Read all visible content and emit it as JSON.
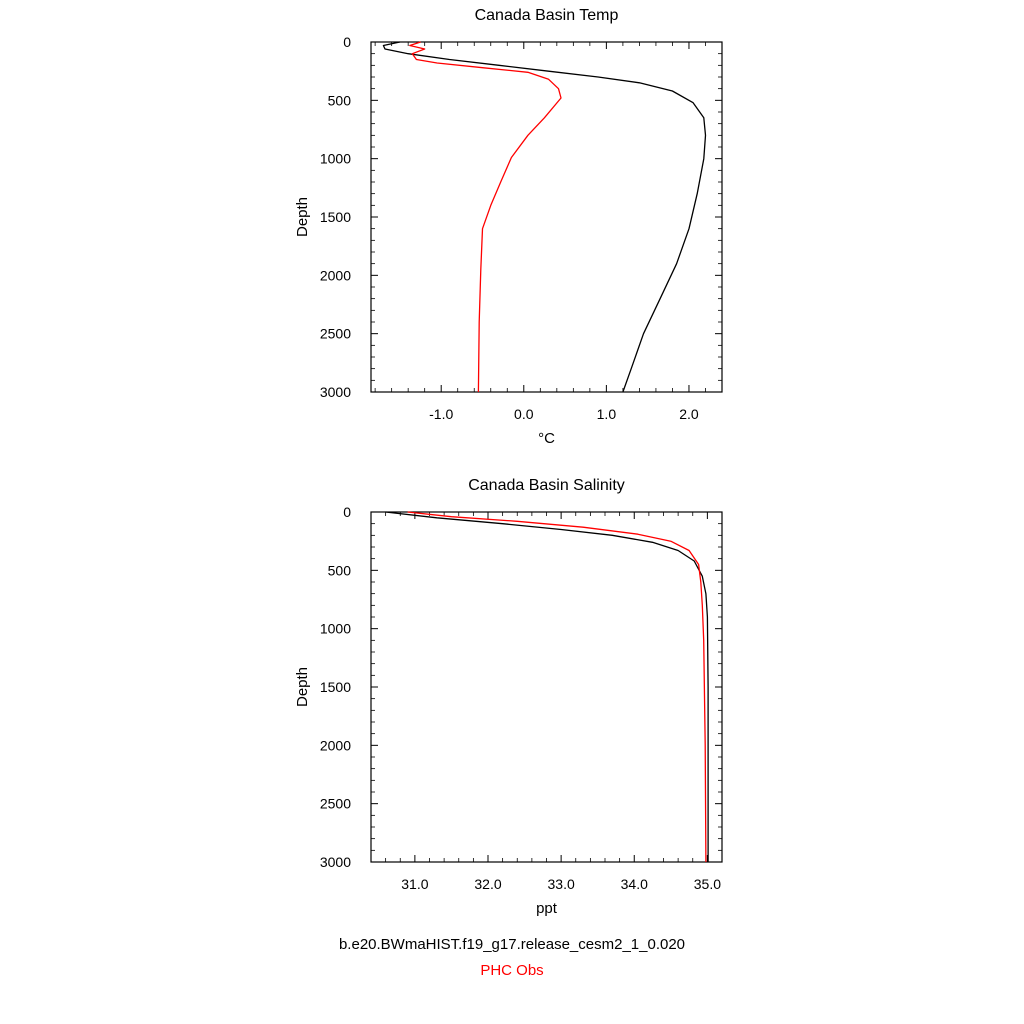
{
  "chart_data": [
    {
      "type": "line",
      "title": "Canada Basin Temp",
      "xlabel": "°C",
      "ylabel": "Depth",
      "xlim": [
        -1.85,
        2.4
      ],
      "ylim": [
        3000,
        0
      ],
      "y_inverted": true,
      "xticks": [
        -1.0,
        0.0,
        1.0,
        2.0
      ],
      "xtick_labels": [
        "-1.0",
        "0.0",
        "1.0",
        "2.0"
      ],
      "yticks": [
        0,
        500,
        1000,
        1500,
        2000,
        2500,
        3000
      ],
      "ytick_labels": [
        "0",
        "500",
        "1000",
        "1500",
        "2000",
        "2500",
        "3000"
      ],
      "grid": false,
      "series": [
        {
          "name": "b.e20.BWmaHIST.f19_g17.release_cesm2_1_0.020",
          "color": "#000000",
          "x": [
            -1.5,
            -1.7,
            -1.68,
            -1.4,
            -0.9,
            -0.3,
            0.3,
            0.9,
            1.4,
            1.8,
            2.05,
            2.18,
            2.2,
            2.18,
            2.1,
            2.0,
            1.85,
            1.65,
            1.45,
            1.3,
            1.2
          ],
          "y": [
            0,
            30,
            60,
            100,
            150,
            200,
            250,
            300,
            350,
            420,
            520,
            650,
            800,
            1000,
            1300,
            1600,
            1900,
            2200,
            2500,
            2800,
            3000
          ]
        },
        {
          "name": "PHC Obs",
          "color": "#ff0000",
          "x": [
            -1.25,
            -1.38,
            -1.2,
            -1.35,
            -1.3,
            -1.05,
            -0.5,
            0.05,
            0.3,
            0.42,
            0.45,
            0.25,
            0.05,
            -0.15,
            -0.28,
            -0.4,
            -0.5,
            -0.52,
            -0.54,
            -0.55
          ],
          "y": [
            0,
            30,
            60,
            100,
            150,
            180,
            220,
            260,
            320,
            400,
            480,
            650,
            800,
            990,
            1200,
            1400,
            1600,
            1950,
            2400,
            3000
          ]
        }
      ]
    },
    {
      "type": "line",
      "title": "Canada Basin Salinity",
      "xlabel": "ppt",
      "ylabel": "Depth",
      "xlim": [
        30.4,
        35.2
      ],
      "ylim": [
        3000,
        0
      ],
      "y_inverted": true,
      "xticks": [
        31.0,
        32.0,
        33.0,
        34.0,
        35.0
      ],
      "xtick_labels": [
        "31.0",
        "32.0",
        "33.0",
        "34.0",
        "35.0"
      ],
      "yticks": [
        0,
        500,
        1000,
        1500,
        2000,
        2500,
        3000
      ],
      "ytick_labels": [
        "0",
        "500",
        "1000",
        "1500",
        "2000",
        "2500",
        "3000"
      ],
      "grid": false,
      "series": [
        {
          "name": "b.e20.BWmaHIST.f19_g17.release_cesm2_1_0.020",
          "color": "#000000",
          "x": [
            30.6,
            31.3,
            32.2,
            33.0,
            33.7,
            34.25,
            34.6,
            34.82,
            34.93,
            34.98,
            35.0,
            35.01,
            35.01
          ],
          "y": [
            0,
            50,
            100,
            150,
            200,
            260,
            330,
            420,
            550,
            700,
            900,
            1500,
            3000
          ]
        },
        {
          "name": "PHC Obs",
          "color": "#ff0000",
          "x": [
            30.9,
            31.5,
            32.4,
            33.3,
            34.05,
            34.5,
            34.75,
            34.88,
            34.91,
            34.93,
            34.95,
            34.97,
            34.98
          ],
          "y": [
            0,
            40,
            80,
            130,
            190,
            250,
            330,
            450,
            600,
            800,
            1100,
            2000,
            3000
          ]
        }
      ]
    }
  ],
  "legend": {
    "model_label": "b.e20.BWmaHIST.f19_g17.release_cesm2_1_0.020",
    "obs_label": "PHC Obs",
    "model_color": "#000000",
    "obs_color": "#ff0000"
  }
}
